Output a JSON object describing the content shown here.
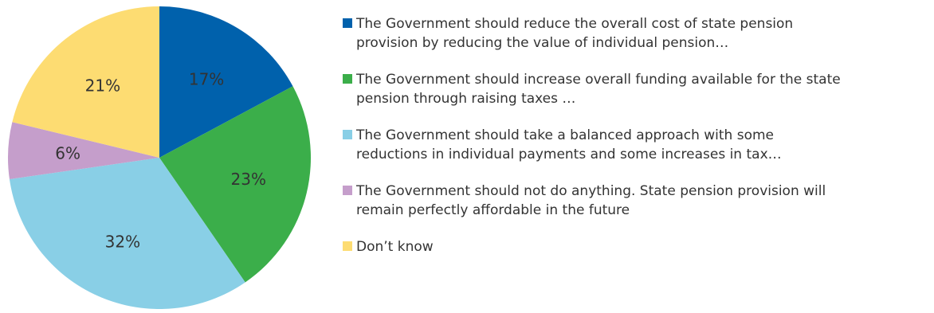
{
  "chart_data": {
    "type": "pie",
    "slices": [
      {
        "label": "The Government should reduce the overall cost of state pension provision by reducing the value of individual pension…",
        "value": 17,
        "display": "17%",
        "color": "#0061AC"
      },
      {
        "label": "The Government should increase overall funding available for the state pension through raising taxes …",
        "value": 23,
        "display": "23%",
        "color": "#3BAE4A"
      },
      {
        "label": "The Government should take a balanced approach with some reductions in individual payments and some increases in tax…",
        "value": 32,
        "display": "32%",
        "color": "#89CFE6"
      },
      {
        "label": "The Government should not do anything. State pension provision will remain perfectly affordable in the future",
        "value": 6,
        "display": "6%",
        "color": "#C59ECB"
      },
      {
        "label": "Don’t know",
        "value": 21,
        "display": "21%",
        "color": "#FDDC72"
      }
    ],
    "start": "top",
    "direction": "clockwise",
    "legend_position": "right"
  },
  "legend": {
    "items": [
      {
        "line1": "The Government should reduce the overall cost of state pension",
        "line2": "provision by reducing the value of individual pension…"
      },
      {
        "line1": "The Government should increase overall funding available for the state",
        "line2": "pension through raising taxes …"
      },
      {
        "line1": "The Government should take a balanced approach with some",
        "line2": "reductions in individual payments and some increases in tax…"
      },
      {
        "line1": "The Government should not do anything. State pension provision will",
        "line2": "remain perfectly affordable in the future"
      },
      {
        "line1": "Don’t know",
        "line2": ""
      }
    ]
  }
}
